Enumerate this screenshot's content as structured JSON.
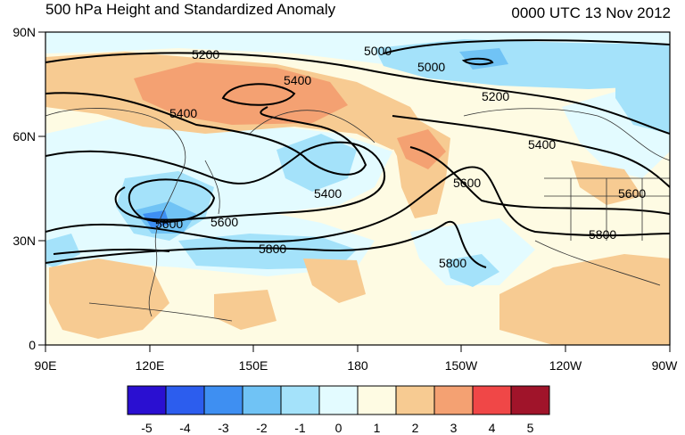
{
  "title": "500 hPa Height and Standardized Anomaly",
  "valid_time": "0000 UTC 13 Nov 2012",
  "lat_ticks": [
    "90N",
    "60N",
    "30N",
    "0"
  ],
  "lon_ticks": [
    "90E",
    "120E",
    "150E",
    "180",
    "150W",
    "120W",
    "90W"
  ],
  "contour_labels": [
    {
      "text": "5000",
      "name": "contour-label-5000-a"
    },
    {
      "text": "5000",
      "name": "contour-label-5000-b"
    },
    {
      "text": "5200",
      "name": "contour-label-5200-a"
    },
    {
      "text": "5200",
      "name": "contour-label-5200-b"
    },
    {
      "text": "5400",
      "name": "contour-label-5400-a"
    },
    {
      "text": "5400",
      "name": "contour-label-5400-b"
    },
    {
      "text": "5400",
      "name": "contour-label-5400-c"
    },
    {
      "text": "5400",
      "name": "contour-label-5400-d"
    },
    {
      "text": "5600",
      "name": "contour-label-5600-a"
    },
    {
      "text": "5600",
      "name": "contour-label-5600-b"
    },
    {
      "text": "5600",
      "name": "contour-label-5600-c"
    },
    {
      "text": "5600",
      "name": "contour-label-5600-d"
    },
    {
      "text": "5800",
      "name": "contour-label-5800-a"
    },
    {
      "text": "5800",
      "name": "contour-label-5800-b"
    },
    {
      "text": "5800",
      "name": "contour-label-5800-c"
    }
  ],
  "colorbar": {
    "labels": [
      "-5",
      "-4",
      "-3",
      "-2",
      "-1",
      "0",
      "1",
      "2",
      "3",
      "4",
      "5"
    ],
    "colors": [
      "#2a0fd1",
      "#2c5dee",
      "#3e8ff2",
      "#70c3f5",
      "#a4e2fa",
      "#e3fbff",
      "#fefbe3",
      "#f7cb92",
      "#f4a172",
      "#f04747",
      "#a0142a"
    ]
  }
}
